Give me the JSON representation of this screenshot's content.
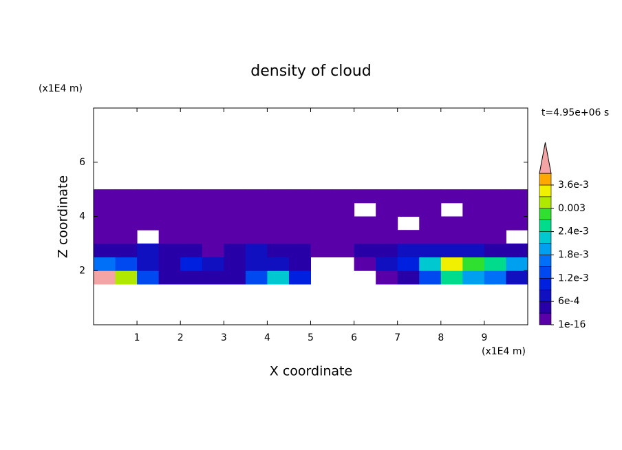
{
  "chart_data": {
    "type": "contour",
    "title": "density of cloud",
    "annotation": "t=4.95e+06 s",
    "x_label": "X coordinate",
    "y_label": "Z coordinate",
    "x_unit": "(x1E4 m)",
    "y_unit": "(x1E4 m)",
    "xlim": [
      0,
      10
    ],
    "ylim": [
      0,
      8
    ],
    "xticks": [
      1,
      2,
      3,
      4,
      5,
      6,
      7,
      8,
      9
    ],
    "yticks": [
      2,
      4,
      6
    ],
    "x": [
      0.25,
      0.75,
      1.25,
      1.75,
      2.25,
      2.75,
      3.25,
      3.75,
      4.25,
      4.75,
      5.25,
      5.75,
      6.25,
      6.75,
      7.25,
      7.75,
      8.25,
      8.75,
      9.25,
      9.75
    ],
    "y": [
      1.75,
      2.25,
      2.75,
      3.25,
      3.75,
      4.25,
      4.75
    ],
    "values": [
      [
        0.0052,
        0.0031,
        0.0012,
        0.0004,
        0.0003,
        0.0003,
        0.0005,
        0.0014,
        0.0021,
        0.0009,
        null,
        null,
        null,
        0.0002,
        0.0003,
        0.0012,
        0.0024,
        0.0018,
        0.0015,
        0.0006
      ],
      [
        0.0015,
        0.0012,
        0.0008,
        0.0004,
        0.0009,
        0.0006,
        0.0005,
        0.0007,
        0.0006,
        0.0003,
        null,
        null,
        0.0002,
        0.0006,
        0.0009,
        0.0021,
        0.0033,
        0.0027,
        0.0024,
        0.0018
      ],
      [
        0.0004,
        0.0005,
        0.0006,
        0.0004,
        0.0003,
        0.0002,
        0.0004,
        0.0006,
        0.0004,
        0.0003,
        0.0002,
        0.0002,
        0.0003,
        0.0004,
        0.0006,
        0.0008,
        0.0007,
        0.0006,
        0.0005,
        0.0004
      ],
      [
        0.0001,
        0.0002,
        null,
        0.0002,
        0.0001,
        0.0001,
        0.0002,
        0.0002,
        0.0001,
        0.0001,
        0.0001,
        0.0001,
        0.0002,
        0.0001,
        0.0001,
        0.0001,
        0.0002,
        0.0001,
        0.0001,
        null
      ],
      [
        0.0001,
        0.0001,
        0.0001,
        0.0001,
        0.0001,
        0.0001,
        0.0001,
        0.0001,
        0.0001,
        0.0001,
        0.0001,
        0.0001,
        0.0001,
        0.0001,
        null,
        0.0001,
        0.0001,
        0.0001,
        0.0001,
        0.0001
      ],
      [
        0.0001,
        0.0001,
        0.0001,
        0.0001,
        0.0001,
        0.0001,
        0.0001,
        0.0001,
        0.0001,
        0.0001,
        0.0001,
        0.0001,
        null,
        0.0001,
        0.0001,
        0.0001,
        null,
        0.0001,
        0.0001,
        0.0001
      ],
      [
        0.0001,
        0.0001,
        0.0001,
        0.0001,
        0.0001,
        0.0001,
        0.0001,
        0.0001,
        0.0001,
        0.0001,
        0.0001,
        0.0001,
        0.0001,
        0.0001,
        0.0001,
        0.0001,
        0.0001,
        0.0001,
        0.0001,
        0.0001
      ]
    ],
    "colorbar": {
      "levels": [
        1e-16,
        0.0003,
        0.0006,
        0.0009,
        0.0012,
        0.0015,
        0.0018,
        0.0021,
        0.0024,
        0.0027,
        0.003,
        0.0033,
        0.0036,
        0.0039
      ],
      "colors": [
        "#5a00a8",
        "#2800a8",
        "#1010c0",
        "#0020e0",
        "#0048f0",
        "#0070f8",
        "#00a0f0",
        "#00c8d0",
        "#00dc8c",
        "#30e030",
        "#b0e800",
        "#f0f000",
        "#ffa800"
      ],
      "over_color": "#f4a4a4",
      "ticks": [
        1e-16,
        {
          "value": 0.0006,
          "label": "6e-4"
        },
        {
          "value": 0.0012,
          "label": "1.2e-3"
        },
        {
          "value": 0.0018,
          "label": "1.8e-3"
        },
        {
          "value": 0.0024,
          "label": "2.4e-3"
        },
        0.003,
        {
          "value": 0.0036,
          "label": "3.6e-3"
        }
      ]
    }
  }
}
